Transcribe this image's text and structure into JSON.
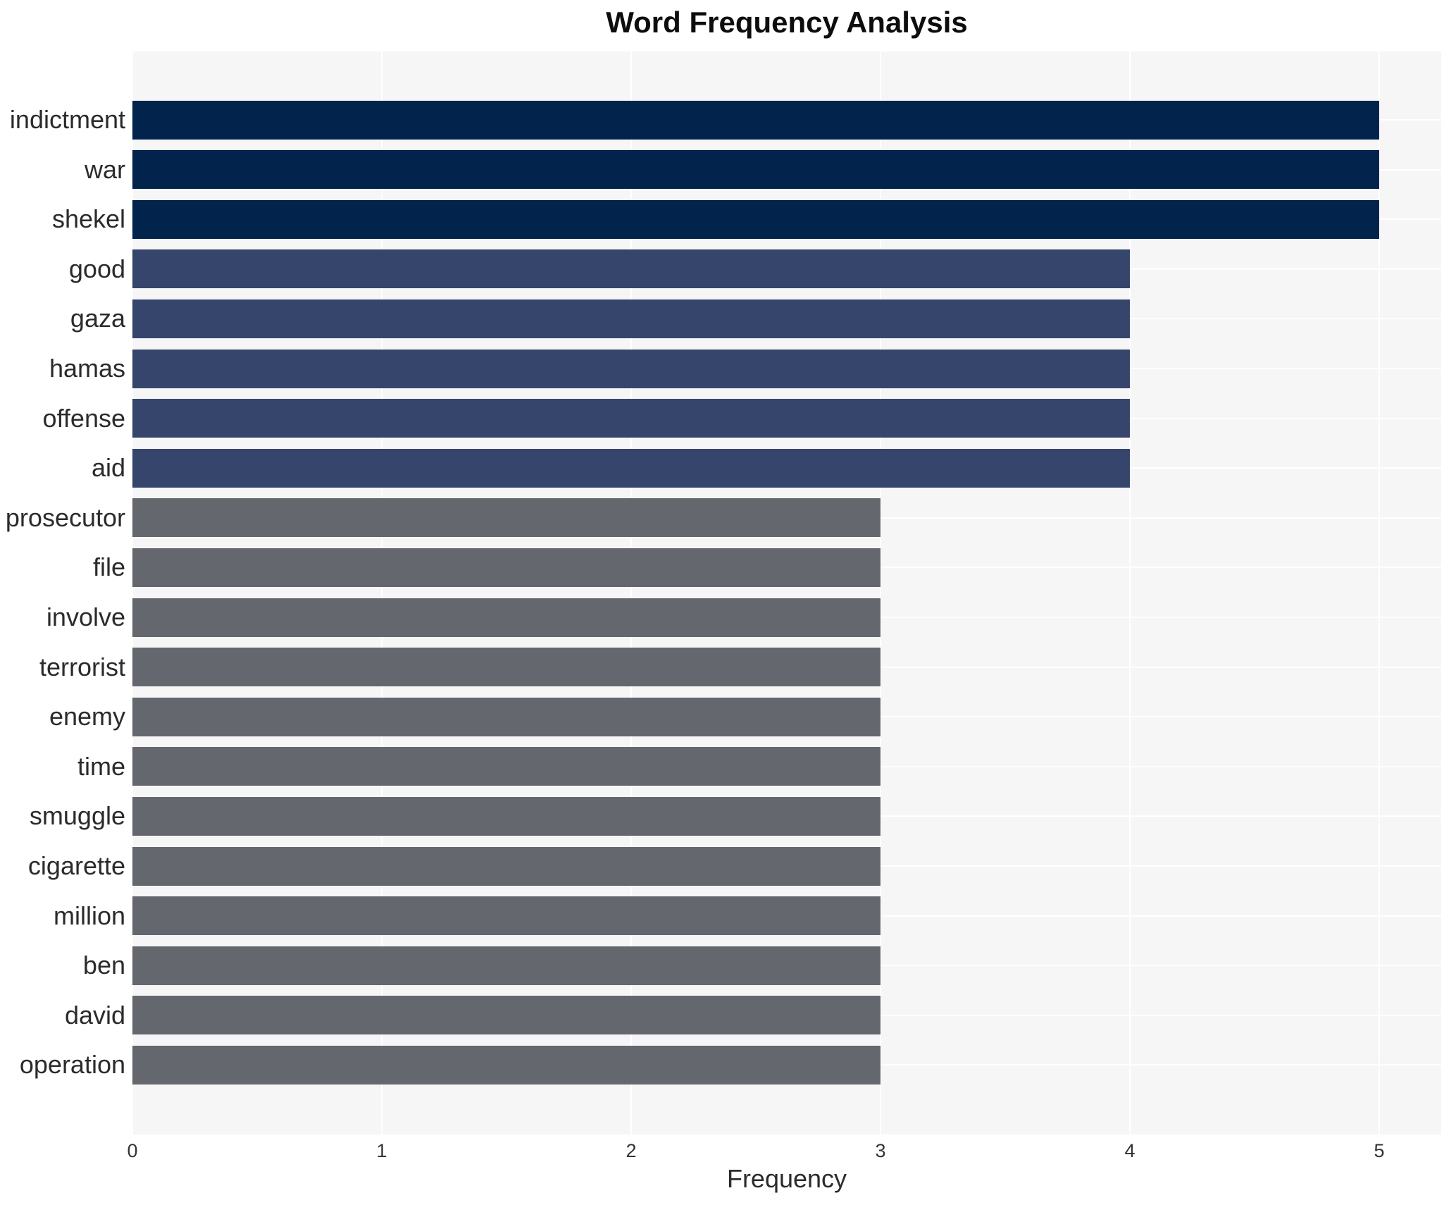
{
  "chart_data": {
    "type": "bar",
    "orientation": "horizontal",
    "title": "Word Frequency Analysis",
    "xlabel": "Frequency",
    "ylabel": "",
    "categories": [
      "indictment",
      "war",
      "shekel",
      "good",
      "gaza",
      "hamas",
      "offense",
      "aid",
      "prosecutor",
      "file",
      "involve",
      "terrorist",
      "enemy",
      "time",
      "smuggle",
      "cigarette",
      "million",
      "ben",
      "david",
      "operation"
    ],
    "values": [
      5,
      5,
      5,
      4,
      4,
      4,
      4,
      4,
      3,
      3,
      3,
      3,
      3,
      3,
      3,
      3,
      3,
      3,
      3,
      3
    ],
    "xticks": [
      0,
      1,
      2,
      3,
      4,
      5
    ],
    "xlim": [
      0,
      5.25
    ],
    "grid": true,
    "legend_position": "none",
    "bar_colors_by_value": {
      "5": "#02234C",
      "4": "#36456B",
      "3": "#65676E"
    },
    "plot_background": "#F6F6F7",
    "grid_color": "#FFFFFF",
    "text_color": "#2B2B2B"
  }
}
